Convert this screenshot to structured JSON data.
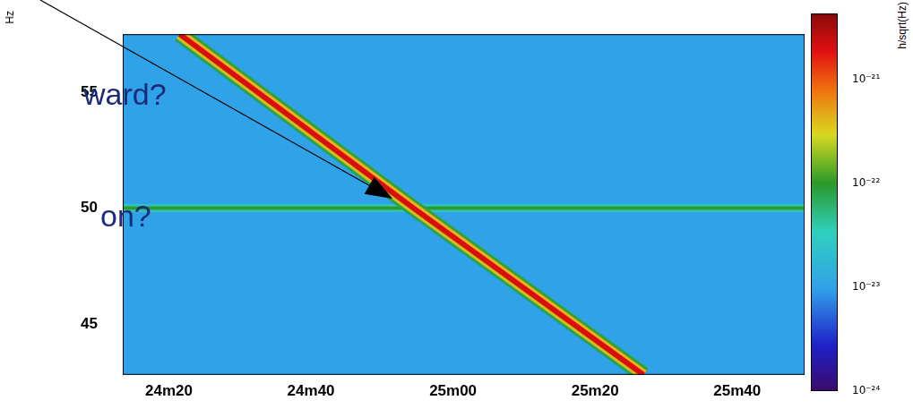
{
  "chart_data": {
    "type": "heatmap",
    "y_label": "Hz",
    "annotations": [
      "ward?",
      "on?"
    ],
    "xlim": [
      1453.5,
      1549.5
    ],
    "xticks": [
      {
        "value": 1460,
        "label": "24m20"
      },
      {
        "value": 1480,
        "label": "24m40"
      },
      {
        "value": 1500,
        "label": "25m00"
      },
      {
        "value": 1520,
        "label": "25m20"
      },
      {
        "value": 1540,
        "label": "25m40"
      }
    ],
    "ylim": [
      42.8,
      57.5
    ],
    "yticks": [
      45,
      50,
      55
    ],
    "grid": false,
    "background": 1e-23,
    "tracks": [
      {
        "x": [
          1453.5,
          1549.5
        ],
        "y": [
          50,
          50
        ],
        "amplitude": 1e-22
      },
      {
        "x": [
          1461.5,
          1494.4,
          1526.8
        ],
        "y": [
          57.5,
          50,
          42.8
        ],
        "amplitude": 2e-21
      }
    ],
    "arrow": {
      "x": 1491.5,
      "y": 50.4
    },
    "colorbar": {
      "label": "h/sqrt(Hz)",
      "log": true,
      "range": [
        1e-24,
        4.3e-21
      ],
      "ticks": [
        {
          "value": 1e-24,
          "label": "10⁻²⁴"
        },
        {
          "value": 1e-23,
          "label": "10⁻²³"
        },
        {
          "value": 1e-22,
          "label": "10⁻²²"
        },
        {
          "value": 1e-21,
          "label": "10⁻²¹"
        }
      ]
    }
  }
}
